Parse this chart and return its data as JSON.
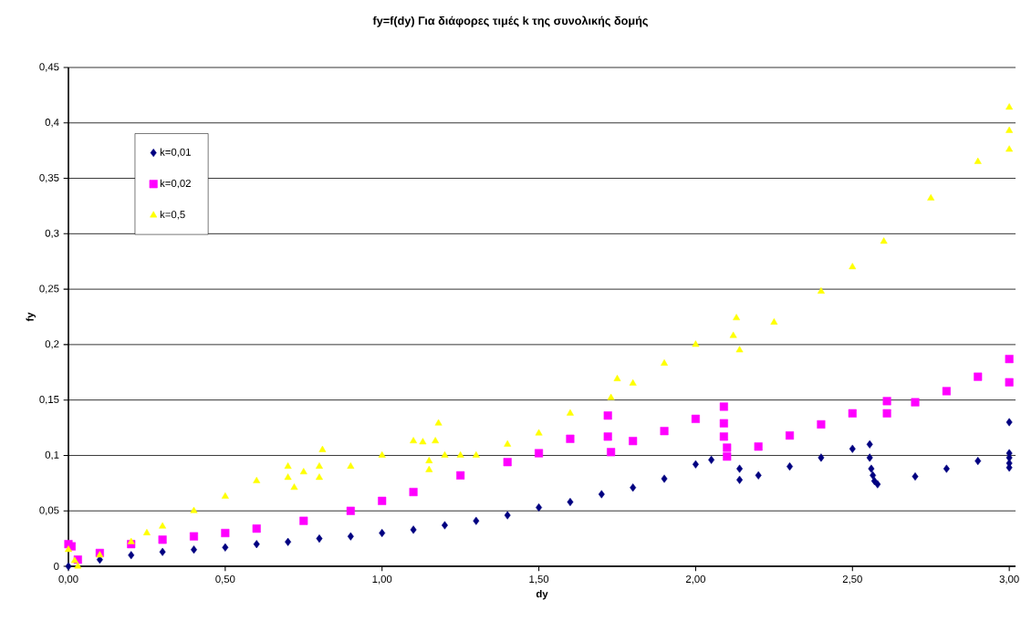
{
  "chart_data": {
    "type": "scatter",
    "title": "fy=f(dy) Για διάφορες τιμές k της συνολικής δομής",
    "xlabel": "dy",
    "ylabel": "fy",
    "xlim": [
      0,
      3.02
    ],
    "ylim": [
      0,
      0.45
    ],
    "xticks": [
      {
        "value": 0,
        "label": "0,00"
      },
      {
        "value": 0.5,
        "label": "0,50"
      },
      {
        "value": 1,
        "label": "1,00"
      },
      {
        "value": 1.5,
        "label": "1,50"
      },
      {
        "value": 2,
        "label": "2,00"
      },
      {
        "value": 2.5,
        "label": "2,50"
      },
      {
        "value": 3,
        "label": "3,00"
      }
    ],
    "yticks": [
      0,
      {
        "value": 0.05,
        "label": "0,05"
      },
      {
        "value": 0.1,
        "label": "0,1"
      },
      {
        "value": 0.15,
        "label": "0,15"
      },
      {
        "value": 0.2,
        "label": "0,2"
      },
      {
        "value": 0.25,
        "label": "0,25"
      },
      {
        "value": 0.3,
        "label": "0,3"
      },
      {
        "value": 0.35,
        "label": "0,35"
      },
      {
        "value": 0.4,
        "label": "0,4"
      },
      {
        "value": 0.45,
        "label": "0,45"
      }
    ],
    "grid": "y",
    "legend": "top left",
    "series": [
      {
        "name": "k=0,01",
        "color": "#000080",
        "marker": "diamond",
        "x": [
          0,
          0.1,
          0.2,
          0.3,
          0.4,
          0.5,
          0.6,
          0.7,
          0.8,
          0.9,
          1.0,
          1.1,
          1.2,
          1.3,
          1.4,
          1.5,
          1.6,
          1.7,
          1.8,
          1.9,
          2.0,
          2.05,
          2.1,
          2.14,
          2.14,
          2.2,
          2.3,
          2.4,
          2.5,
          2.555,
          2.555,
          2.56,
          2.565,
          2.57,
          2.58,
          2.7,
          2.8,
          2.9,
          3.0,
          3.0,
          3.0,
          3.0,
          3.0
        ],
        "values": [
          0,
          0.006,
          0.01,
          0.013,
          0.015,
          0.017,
          0.02,
          0.022,
          0.025,
          0.027,
          0.03,
          0.033,
          0.037,
          0.041,
          0.046,
          0.053,
          0.058,
          0.065,
          0.071,
          0.079,
          0.092,
          0.096,
          null,
          0.088,
          0.078,
          0.082,
          0.09,
          0.098,
          0.106,
          0.11,
          0.098,
          0.088,
          0.082,
          0.077,
          0.074,
          0.081,
          0.088,
          0.095,
          0.102,
          0.13,
          0.098,
          0.093,
          0.089
        ]
      },
      {
        "name": "k=0,02",
        "color": "#ff00ff",
        "marker": "square",
        "x": [
          0,
          0.01,
          0.03,
          0.1,
          0.2,
          0.3,
          0.4,
          0.5,
          0.6,
          0.75,
          0.9,
          1.0,
          1.1,
          1.25,
          1.4,
          1.5,
          1.6,
          1.72,
          1.72,
          1.73,
          1.8,
          1.9,
          2.0,
          2.09,
          2.09,
          2.09,
          2.1,
          2.1,
          2.2,
          2.3,
          2.4,
          2.5,
          2.61,
          2.61,
          2.7,
          2.8,
          2.9,
          3.0,
          3.0
        ],
        "values": [
          0.02,
          0.018,
          0.006,
          0.012,
          0.02,
          0.024,
          0.027,
          0.03,
          0.034,
          0.041,
          0.05,
          0.059,
          0.067,
          0.082,
          0.094,
          0.102,
          0.115,
          0.136,
          0.117,
          0.103,
          0.113,
          0.122,
          0.133,
          0.144,
          0.129,
          0.117,
          0.107,
          0.099,
          0.108,
          0.118,
          0.128,
          0.138,
          0.149,
          0.138,
          0.148,
          0.158,
          0.171,
          0.187,
          0.166
        ]
      },
      {
        "name": "k=0,5",
        "color": "#ffff00",
        "marker": "triangle",
        "x": [
          0,
          0.02,
          0.03,
          0.1,
          0.2,
          0.25,
          0.3,
          0.4,
          0.5,
          0.6,
          0.7,
          0.81,
          0.7,
          0.75,
          0.8,
          0.72,
          0.8,
          0.9,
          1.0,
          1.1,
          1.18,
          1.13,
          1.17,
          1.15,
          1.2,
          1.25,
          1.15,
          1.3,
          1.4,
          1.5,
          1.6,
          1.75,
          1.73,
          1.8,
          1.9,
          2.0,
          2.13,
          2.12,
          2.14,
          2.25,
          2.4,
          2.5,
          2.6,
          2.75,
          2.9,
          3.0,
          3.0,
          3.0
        ],
        "values": [
          0.015,
          0.005,
          0,
          0.01,
          0.022,
          0.03,
          0.036,
          0.05,
          0.063,
          0.077,
          0.09,
          0.105,
          0.08,
          0.085,
          0.09,
          0.071,
          0.08,
          0.09,
          0.1,
          0.113,
          0.129,
          0.112,
          0.113,
          0.095,
          0.1,
          0.1,
          0.087,
          0.1,
          0.11,
          0.12,
          0.138,
          0.169,
          0.152,
          0.165,
          0.183,
          0.2,
          0.224,
          0.208,
          0.195,
          0.22,
          0.248,
          0.27,
          0.293,
          0.332,
          0.365,
          0.393,
          0.414,
          0.376
        ]
      }
    ]
  }
}
